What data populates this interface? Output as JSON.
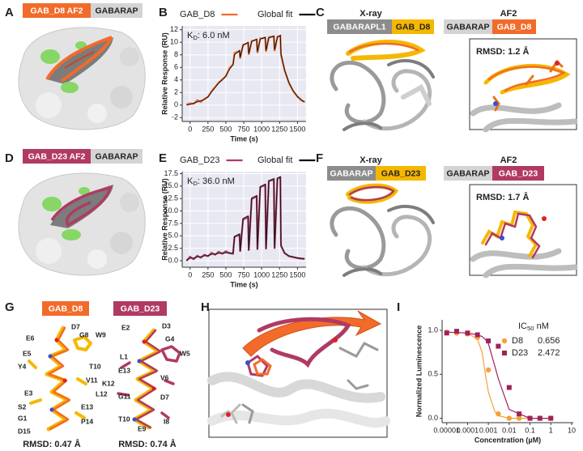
{
  "panel_letters": [
    "A",
    "B",
    "C",
    "D",
    "E",
    "F",
    "G",
    "H",
    "I"
  ],
  "panels": {
    "A": {
      "peptide": "GAB_D8 AF2",
      "receptor": "GABARAP"
    },
    "C": {
      "xray": "X-ray",
      "af2": "AF2",
      "xray_receptor": "GABARAPL1",
      "xray_peptide": "GAB_D8",
      "af2_receptor": "GABARAP",
      "af2_peptide": "GAB_D8",
      "rmsd": "RMSD: 1.2 Å"
    },
    "D": {
      "peptide": "GAB_D23 AF2",
      "receptor": "GABARAP"
    },
    "F": {
      "xray": "X-ray",
      "af2": "AF2",
      "xray_receptor": "GABARAP",
      "xray_peptide": "GAB_D23",
      "af2_receptor": "GABARAP",
      "af2_peptide": "GAB_D23",
      "rmsd": "RMSD: 1.7 Å"
    },
    "G": {
      "left_title": "GAB_D8",
      "left_residues": [
        "D7",
        "G8",
        "W9",
        "E6",
        "E5",
        "Y4",
        "T10",
        "V11",
        "E3",
        "L12",
        "S2",
        "E13",
        "G1",
        "P14",
        "D15"
      ],
      "left_rmsd": "RMSD: 0.47 Å",
      "right_title": "GAB_D23",
      "right_residues": [
        "E2",
        "D3",
        "G4",
        "W5",
        "L1",
        "E13",
        "V6",
        "K12",
        "G11",
        "D7",
        "T10",
        "I8",
        "E9"
      ],
      "right_rmsd": "RMSD: 0.74 Å"
    }
  },
  "chart_data": [
    {
      "type": "line",
      "x_label": "Time (s)",
      "y_label": "Relative Response (RU)",
      "annotation": {
        "main": "K",
        "sub": "D",
        "rest": ": 6.0 nM"
      },
      "background": "#e8e8f3",
      "grid": true,
      "xlim": [
        -110,
        1620
      ],
      "xticks": [
        0,
        250,
        500,
        750,
        1000,
        1250,
        1500
      ],
      "ylim": [
        -2.6,
        12.6
      ],
      "yticks": [
        -2,
        0,
        2,
        4,
        6,
        8,
        10,
        12
      ],
      "x": [
        -50,
        0,
        50,
        100,
        150,
        200,
        250,
        300,
        350,
        400,
        450,
        500,
        550,
        600,
        620,
        690,
        700,
        740,
        810,
        820,
        860,
        930,
        940,
        980,
        1050,
        1060,
        1100,
        1170,
        1180,
        1220,
        1260,
        1270,
        1320,
        1380,
        1440,
        1500,
        1560,
        1600
      ],
      "series": [
        {
          "name": "GAB_D8",
          "color": "#f26b2a",
          "values": [
            0.1,
            0.3,
            0.2,
            0.8,
            0.5,
            1.0,
            1.3,
            2.2,
            2.9,
            3.6,
            4.1,
            4.6,
            5.9,
            6.5,
            8.3,
            8.6,
            7.4,
            9.6,
            9.9,
            8.0,
            10.2,
            10.4,
            8.3,
            10.6,
            10.7,
            8.5,
            10.8,
            10.9,
            8.6,
            10.9,
            11.0,
            8.0,
            5.5,
            3.5,
            2.2,
            1.3,
            0.7,
            0.5
          ]
        },
        {
          "name": "Global fit",
          "color": "#111111",
          "values": [
            0,
            0.1,
            0.3,
            0.5,
            0.7,
            0.9,
            1.3,
            2.1,
            2.8,
            3.5,
            4.0,
            4.6,
            5.7,
            6.4,
            8.0,
            8.7,
            7.6,
            9.5,
            10.0,
            8.2,
            10.1,
            10.5,
            8.5,
            10.5,
            10.8,
            8.7,
            10.7,
            11.0,
            8.8,
            10.8,
            11.1,
            8.2,
            5.6,
            3.6,
            2.3,
            1.4,
            0.8,
            0.5
          ]
        }
      ]
    },
    {
      "type": "line",
      "x_label": "Time (s)",
      "y_label": "Relative Response (RU)",
      "annotation": {
        "main": "K",
        "sub": "D",
        "rest": ": 36.0 nM"
      },
      "background": "#e8e8f3",
      "grid": true,
      "xlim": [
        -110,
        1620
      ],
      "xticks": [
        0,
        250,
        500,
        750,
        1000,
        1250,
        1500
      ],
      "ylim": [
        -1.3,
        17.9
      ],
      "yticks": [
        {
          "value": 0,
          "label": "0.0"
        },
        2.5,
        {
          "value": 5,
          "label": "5.0"
        },
        7.5,
        {
          "value": 10,
          "label": "10.0"
        },
        12.5,
        {
          "value": 15,
          "label": "15.0"
        },
        17.5
      ],
      "x": [
        -50,
        0,
        50,
        100,
        150,
        200,
        250,
        300,
        350,
        400,
        450,
        500,
        550,
        600,
        620,
        690,
        700,
        740,
        810,
        820,
        860,
        930,
        940,
        980,
        1050,
        1060,
        1100,
        1170,
        1180,
        1220,
        1260,
        1270,
        1320,
        1380,
        1440,
        1500,
        1560,
        1600
      ],
      "series": [
        {
          "name": "GAB_D23",
          "color": "#b03a64",
          "values": [
            0.0,
            0.8,
            0.3,
            1.0,
            0.6,
            1.2,
            0.9,
            1.6,
            1.2,
            1.8,
            1.4,
            1.9,
            1.5,
            1.4,
            4.8,
            5.2,
            1.8,
            8.3,
            8.7,
            2.0,
            12.4,
            12.9,
            2.2,
            14.8,
            15.2,
            2.3,
            16.0,
            16.3,
            2.4,
            16.5,
            16.7,
            3.0,
            1.5,
            0.9,
            0.7,
            0.5,
            0.4,
            0.4
          ]
        },
        {
          "name": "Global fit",
          "color": "#111111",
          "values": [
            0,
            0.5,
            0.5,
            0.8,
            0.8,
            1.0,
            1.0,
            1.3,
            1.3,
            1.5,
            1.5,
            1.6,
            1.6,
            1.5,
            4.9,
            5.4,
            1.9,
            8.5,
            9.0,
            2.1,
            12.6,
            13.1,
            2.3,
            14.9,
            15.4,
            2.4,
            16.1,
            16.5,
            2.5,
            16.6,
            16.9,
            3.2,
            1.6,
            1.0,
            0.8,
            0.6,
            0.5,
            0.4
          ]
        }
      ]
    },
    {
      "type": "scatter",
      "x_label": "Concentration (µM)",
      "y_label": "Normalized  Luminescence",
      "legend_title": {
        "main": "IC",
        "sub": "50",
        "rest": " nM"
      },
      "xscale": "log",
      "grid": false,
      "xlim": [
        6e-06,
        12
      ],
      "xticks": [
        1e-05,
        0.0001,
        0.001,
        0.01,
        0.1,
        1,
        10
      ],
      "ylim": [
        -0.05,
        1.12
      ],
      "yticks": [
        {
          "value": 0,
          "label": "0.0"
        },
        {
          "value": 0.5,
          "label": "0.5"
        },
        {
          "value": 1,
          "label": "1.0"
        }
      ],
      "series": [
        {
          "name": "D8",
          "color": "#f5a03a",
          "marker": "circle",
          "ic50": 0.656,
          "x": [
            1e-05,
            3e-05,
            0.0001,
            0.0003,
            0.001,
            0.003,
            0.01,
            0.03,
            0.1,
            0.3,
            1
          ],
          "values": [
            0.98,
            0.97,
            0.96,
            0.92,
            0.55,
            0.05,
            0.0,
            0.0,
            0.0,
            0.0,
            0.0
          ],
          "fit_x": [
            1e-05,
            0.0001,
            0.0003,
            0.0005,
            0.0007,
            0.001,
            0.002,
            0.003,
            0.01,
            0.1,
            1
          ],
          "fit_values": [
            0.98,
            0.97,
            0.9,
            0.75,
            0.52,
            0.3,
            0.08,
            0.03,
            0,
            0,
            0
          ]
        },
        {
          "name": "D23",
          "color": "#a0225a",
          "marker": "square",
          "ic50": 2.472,
          "x": [
            1e-05,
            3e-05,
            0.0001,
            0.0003,
            0.001,
            0.003,
            0.01,
            0.03,
            0.1,
            0.3,
            1
          ],
          "values": [
            0.97,
            0.99,
            0.97,
            0.95,
            0.88,
            0.82,
            0.35,
            0.05,
            0.0,
            0.0,
            0.0
          ],
          "fit_x": [
            1e-05,
            0.0001,
            0.0003,
            0.0005,
            0.0007,
            0.001,
            0.002,
            0.003,
            0.01,
            0.1,
            1
          ],
          "fit_values": [
            0.98,
            0.97,
            0.95,
            0.93,
            0.9,
            0.85,
            0.6,
            0.45,
            0.1,
            0,
            0
          ]
        }
      ]
    }
  ]
}
